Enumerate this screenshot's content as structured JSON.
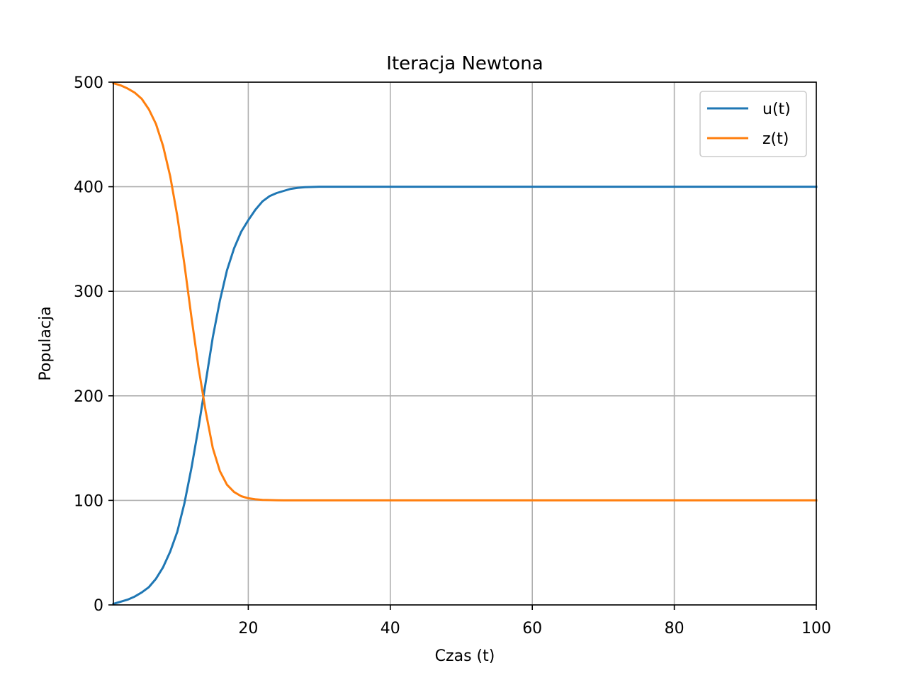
{
  "chart_data": {
    "type": "line",
    "title": "Iteracja Newtona",
    "xlabel": "Czas (t)",
    "ylabel": "Populacja",
    "xlim": [
      1,
      100
    ],
    "ylim": [
      0,
      500
    ],
    "xticks": [
      20,
      40,
      60,
      80,
      100
    ],
    "yticks": [
      0,
      100,
      200,
      300,
      400,
      500
    ],
    "grid": true,
    "legend_position": "top-right",
    "series": [
      {
        "name": "u(t)",
        "color": "#1f77b4",
        "x": [
          1,
          2,
          3,
          4,
          5,
          6,
          7,
          8,
          9,
          10,
          11,
          12,
          13,
          14,
          15,
          16,
          17,
          18,
          19,
          20,
          21,
          22,
          23,
          24,
          25,
          26,
          27,
          28,
          30,
          32,
          35,
          40,
          50,
          60,
          70,
          80,
          90,
          100
        ],
        "values": [
          1,
          3,
          5,
          8,
          12,
          17,
          25,
          36,
          51,
          70,
          97,
          131,
          170,
          213,
          256,
          291,
          320,
          341,
          357,
          368,
          378,
          386,
          391,
          394,
          396,
          398,
          399,
          399.5,
          400,
          400,
          400,
          400,
          400,
          400,
          400,
          400,
          400,
          400
        ]
      },
      {
        "name": "z(t)",
        "color": "#ff7f0e",
        "x": [
          1,
          2,
          3,
          4,
          5,
          6,
          7,
          8,
          9,
          10,
          11,
          12,
          13,
          14,
          15,
          16,
          17,
          18,
          19,
          20,
          21,
          22,
          23,
          24,
          25,
          26,
          27,
          28,
          30,
          32,
          35,
          40,
          50,
          60,
          70,
          80,
          90,
          100
        ],
        "values": [
          499,
          497,
          494,
          490,
          484,
          474,
          460,
          439,
          410,
          372,
          326,
          275,
          227,
          185,
          150,
          128,
          115,
          108,
          104,
          102,
          101,
          100.5,
          100.3,
          100.1,
          100,
          100,
          100,
          100,
          100,
          100,
          100,
          100,
          100,
          100,
          100,
          100,
          100,
          100
        ]
      }
    ]
  }
}
